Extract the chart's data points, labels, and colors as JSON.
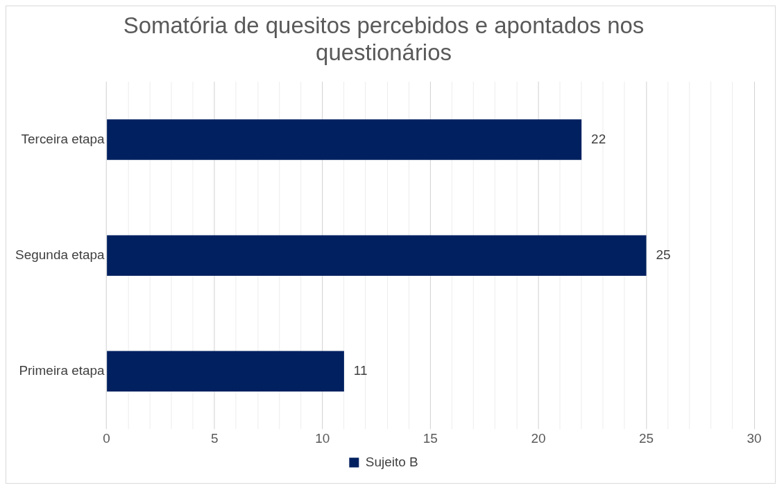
{
  "chart_data": {
    "type": "bar",
    "orientation": "horizontal",
    "title": "Somatória de quesitos percebidos e apontados nos questionários",
    "categories": [
      "Terceira etapa",
      "Segunda etapa",
      "Primeira etapa"
    ],
    "series": [
      {
        "name": "Sujeito B",
        "color": "#002060",
        "values": [
          22,
          25,
          11
        ]
      }
    ],
    "xlim": [
      0,
      30
    ],
    "xticks": [
      0,
      {
        "value": 1,
        "label": null
      },
      {
        "value": 2,
        "label": null
      },
      {
        "value": 3,
        "label": null
      },
      {
        "value": 4,
        "label": null
      },
      5,
      {
        "value": 6,
        "label": null
      },
      {
        "value": 7,
        "label": null
      },
      {
        "value": 8,
        "label": null
      },
      {
        "value": 9,
        "label": null
      },
      10,
      {
        "value": 11,
        "label": null
      },
      {
        "value": 12,
        "label": null
      },
      {
        "value": 13,
        "label": null
      },
      {
        "value": 14,
        "label": null
      },
      15,
      {
        "value": 16,
        "label": null
      },
      {
        "value": 17,
        "label": null
      },
      {
        "value": 18,
        "label": null
      },
      {
        "value": 19,
        "label": null
      },
      20,
      {
        "value": 21,
        "label": null
      },
      {
        "value": 22,
        "label": null
      },
      {
        "value": 23,
        "label": null
      },
      {
        "value": 24,
        "label": null
      },
      25,
      {
        "value": 26,
        "label": null
      },
      {
        "value": 27,
        "label": null
      },
      {
        "value": 28,
        "label": null
      },
      {
        "value": 29,
        "label": null
      },
      30
    ],
    "grid": "x",
    "legend": "bottom",
    "data_labels": true
  }
}
